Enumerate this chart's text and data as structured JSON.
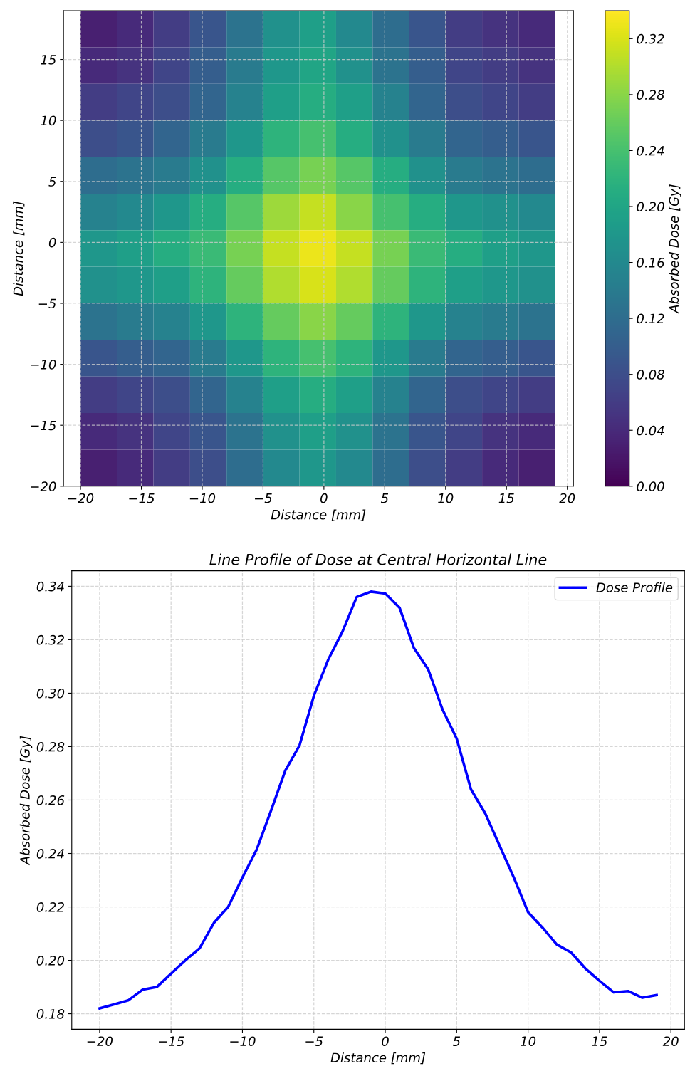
{
  "chart_data": [
    {
      "type": "heatmap",
      "xlabel": "Distance [mm]",
      "ylabel": "Distance [mm]",
      "clabel": "Absorbed Dose [Gy]",
      "x": [
        -18.5,
        -15.5,
        -12.5,
        -9.5,
        -6.5,
        -3.5,
        -0.5,
        2.5,
        5.5,
        8.5,
        11.5,
        14.5,
        17.5
      ],
      "y": [
        17.5,
        14.5,
        11.5,
        8.5,
        5.5,
        2.5,
        -0.5,
        -3.5,
        -6.5,
        -9.5,
        -12.5,
        -15.5,
        -18.5
      ],
      "cells": [
        [
          0.03,
          0.04,
          0.06,
          0.09,
          0.13,
          0.17,
          0.19,
          0.16,
          0.12,
          0.09,
          0.06,
          0.05,
          0.04
        ],
        [
          0.04,
          0.05,
          0.07,
          0.1,
          0.14,
          0.18,
          0.2,
          0.17,
          0.13,
          0.1,
          0.07,
          0.06,
          0.05
        ],
        [
          0.06,
          0.07,
          0.08,
          0.11,
          0.15,
          0.19,
          0.21,
          0.19,
          0.15,
          0.11,
          0.08,
          0.07,
          0.06
        ],
        [
          0.08,
          0.09,
          0.11,
          0.14,
          0.18,
          0.22,
          0.24,
          0.21,
          0.17,
          0.14,
          0.11,
          0.1,
          0.09
        ],
        [
          0.12,
          0.13,
          0.14,
          0.17,
          0.21,
          0.25,
          0.27,
          0.25,
          0.21,
          0.17,
          0.14,
          0.13,
          0.12
        ],
        [
          0.15,
          0.16,
          0.18,
          0.21,
          0.25,
          0.29,
          0.31,
          0.28,
          0.24,
          0.21,
          0.18,
          0.17,
          0.16
        ],
        [
          0.18,
          0.19,
          0.21,
          0.23,
          0.27,
          0.31,
          0.33,
          0.31,
          0.27,
          0.23,
          0.21,
          0.19,
          0.18
        ],
        [
          0.17,
          0.18,
          0.19,
          0.22,
          0.26,
          0.3,
          0.32,
          0.3,
          0.26,
          0.22,
          0.19,
          0.18,
          0.17
        ],
        [
          0.13,
          0.14,
          0.15,
          0.18,
          0.22,
          0.26,
          0.28,
          0.26,
          0.22,
          0.18,
          0.15,
          0.14,
          0.13
        ],
        [
          0.09,
          0.1,
          0.11,
          0.14,
          0.18,
          0.22,
          0.24,
          0.22,
          0.18,
          0.14,
          0.11,
          0.1,
          0.09
        ],
        [
          0.06,
          0.07,
          0.08,
          0.11,
          0.15,
          0.19,
          0.21,
          0.19,
          0.15,
          0.11,
          0.08,
          0.07,
          0.06
        ],
        [
          0.04,
          0.05,
          0.07,
          0.09,
          0.13,
          0.17,
          0.19,
          0.17,
          0.13,
          0.09,
          0.07,
          0.05,
          0.04
        ],
        [
          0.03,
          0.04,
          0.06,
          0.08,
          0.12,
          0.16,
          0.18,
          0.16,
          0.12,
          0.08,
          0.06,
          0.04,
          0.03
        ]
      ],
      "xlim": [
        -21.4,
        20.5
      ],
      "ylim": [
        -20,
        19
      ],
      "xticks": [
        -20,
        -15,
        -10,
        -5,
        0,
        5,
        10,
        15,
        20
      ],
      "yticks": [
        -20,
        -15,
        -10,
        -5,
        0,
        5,
        10,
        15
      ],
      "clim": [
        0,
        0.34
      ],
      "cticks": [
        {
          "value": 0,
          "label": "0.00"
        },
        0.04,
        0.08,
        0.12,
        0.16,
        {
          "value": 0.2,
          "label": "0.20"
        },
        0.24,
        0.28,
        0.32
      ],
      "grid": true
    },
    {
      "type": "line",
      "title": "Line Profile of Dose at Central Horizontal Line",
      "xlabel": "Distance [mm]",
      "ylabel": "Absorbed Dose [Gy]",
      "x": [
        -20,
        -19,
        -18,
        -17,
        -16,
        -15,
        -14,
        -13,
        -12,
        -11,
        -10,
        -9,
        -8,
        -7,
        -6,
        -5,
        -4,
        -3,
        -2,
        -1,
        0,
        1,
        2,
        3,
        4,
        5,
        6,
        7,
        8,
        9,
        10,
        11,
        12,
        13,
        14,
        15,
        16,
        17,
        18,
        19
      ],
      "series": [
        {
          "name": "Dose Profile",
          "color": "#0000ff",
          "values": [
            0.182,
            0.1835,
            0.185,
            0.189,
            0.19,
            0.195,
            0.2,
            0.2045,
            0.214,
            0.22,
            0.231,
            0.2415,
            0.256,
            0.271,
            0.2805,
            0.299,
            0.3125,
            0.323,
            0.336,
            0.338,
            0.3373,
            0.332,
            0.317,
            0.309,
            0.294,
            0.283,
            0.264,
            0.255,
            0.243,
            0.231,
            0.218,
            0.2123,
            0.206,
            0.203,
            0.197,
            0.1923,
            0.188,
            0.1885,
            0.186,
            0.187
          ]
        }
      ],
      "xlim": [
        -21.95,
        20.95
      ],
      "ylim": [
        0.1742,
        0.3458
      ],
      "xticks": [
        -20,
        -15,
        -10,
        -5,
        0,
        5,
        10,
        15,
        20
      ],
      "yticks": [
        0.18,
        {
          "value": 0.2,
          "label": "0.20"
        },
        0.22,
        0.24,
        0.26,
        0.28,
        {
          "value": 0.3,
          "label": "0.30"
        },
        0.32,
        0.34
      ],
      "grid": true,
      "legend": "top right",
      "marker": "none",
      "line_style": "solid"
    }
  ]
}
